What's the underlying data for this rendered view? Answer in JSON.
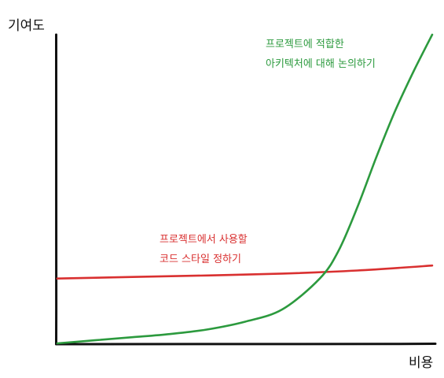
{
  "chart_data": {
    "type": "line",
    "title": "",
    "xlabel": "비용",
    "ylabel": "기여도",
    "xlim": [
      0,
      100
    ],
    "ylim": [
      0,
      100
    ],
    "grid": false,
    "legend": "none",
    "series": [
      {
        "color": "#d93030",
        "x": [
          0,
          20,
          40,
          60,
          80,
          100
        ],
        "y": [
          21,
          21.5,
          22,
          22.6,
          23.6,
          25.2
        ],
        "annotation": [
          "프로젝트에서 사용할",
          "코드 스타일 정하기"
        ]
      },
      {
        "color": "#2c9a3e",
        "x": [
          0,
          10,
          20,
          30,
          40,
          50,
          60,
          70,
          75,
          80,
          85,
          90,
          95,
          100
        ],
        "y": [
          0,
          1,
          2,
          3,
          4.5,
          7,
          11,
          21,
          30,
          44,
          60,
          75,
          88,
          100
        ],
        "annotation": [
          "프로젝트에 적합한",
          "아키텍처에 대해 논의하기"
        ]
      }
    ]
  }
}
